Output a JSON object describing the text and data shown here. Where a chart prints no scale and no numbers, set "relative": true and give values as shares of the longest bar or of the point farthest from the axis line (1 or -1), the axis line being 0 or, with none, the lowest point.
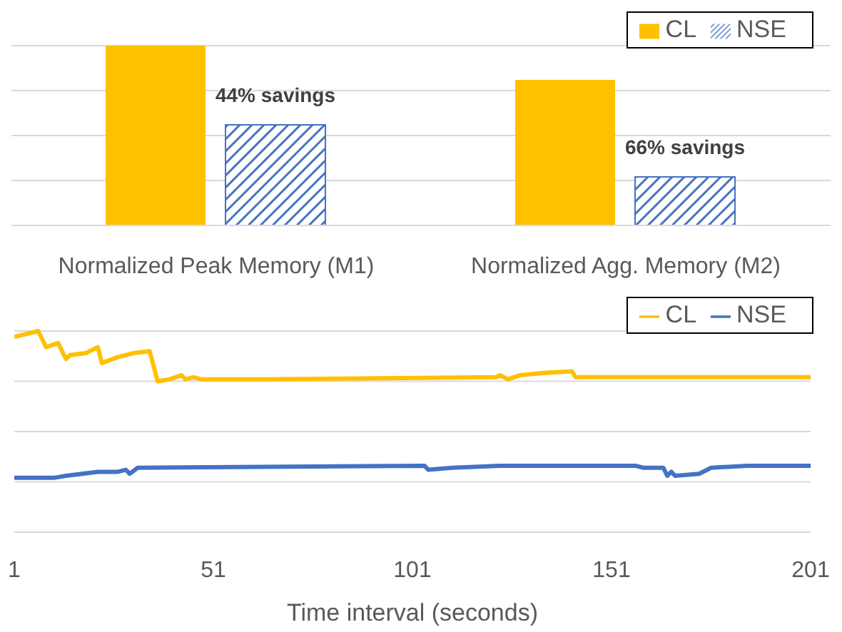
{
  "chart_data": [
    {
      "type": "bar",
      "relative": true,
      "categories": [
        "Normalized Peak Memory (M1)",
        "Normalized Agg. Memory (M2)"
      ],
      "series": [
        {
          "name": "CL",
          "color": "#ffc000",
          "values": [
            1,
            0.81
          ]
        },
        {
          "name": "NSE",
          "color": "#4472c4",
          "values": [
            0.56,
            0.27
          ]
        }
      ],
      "annotations": [
        "44% savings",
        "66% savings"
      ],
      "grid": "y",
      "legend": "top right"
    },
    {
      "type": "line",
      "relative": true,
      "xlabel": "Time interval (seconds)",
      "xlim": [
        1,
        201
      ],
      "xticks": [
        1,
        51,
        101,
        151,
        201
      ],
      "grid": "y",
      "legend": "top right",
      "marker": "none",
      "line_style": "solid",
      "series": [
        {
          "name": "CL",
          "color": "#ffc000",
          "x": [
            1,
            7,
            9,
            12,
            14,
            15,
            19,
            22,
            23,
            27,
            31,
            35,
            37,
            40,
            43,
            44,
            46,
            48,
            63,
            122,
            123,
            125,
            128,
            133,
            141,
            142,
            201
          ],
          "values": [
            0.97,
            1,
            0.92,
            0.94,
            0.86,
            0.88,
            0.89,
            0.92,
            0.84,
            0.87,
            0.89,
            0.9,
            0.75,
            0.76,
            0.78,
            0.76,
            0.77,
            0.76,
            0.76,
            0.77,
            0.78,
            0.76,
            0.78,
            0.79,
            0.8,
            0.77,
            0.77
          ]
        },
        {
          "name": "NSE",
          "color": "#4472c4",
          "x": [
            1,
            11,
            14,
            22,
            27,
            29,
            30,
            32,
            104,
            105,
            111,
            123,
            139,
            157,
            159,
            164,
            165,
            166,
            167,
            173,
            176,
            185,
            201
          ],
          "values": [
            0.27,
            0.27,
            0.28,
            0.3,
            0.3,
            0.31,
            0.29,
            0.32,
            0.33,
            0.31,
            0.32,
            0.33,
            0.33,
            0.33,
            0.32,
            0.32,
            0.28,
            0.3,
            0.28,
            0.29,
            0.32,
            0.33,
            0.33
          ]
        }
      ]
    }
  ]
}
